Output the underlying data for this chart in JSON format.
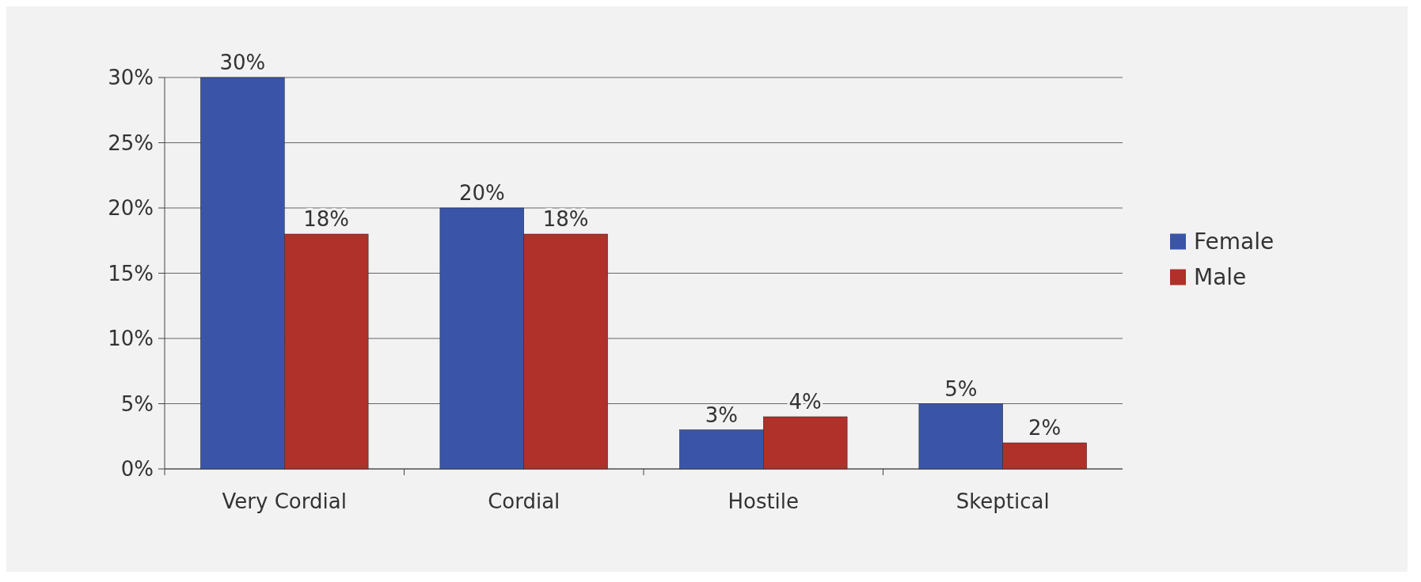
{
  "chart_data": {
    "type": "bar",
    "categories": [
      "Very Cordial",
      "Cordial",
      "Hostile",
      "Skeptical"
    ],
    "series": [
      {
        "name": "Female",
        "color": "#3a55a8",
        "values": [
          30,
          20,
          3,
          5
        ],
        "value_labels": [
          "30%",
          "20%",
          "3%",
          "5%"
        ]
      },
      {
        "name": "Male",
        "color": "#b0302a",
        "values": [
          18,
          18,
          4,
          2
        ],
        "value_labels": [
          "18%",
          "18%",
          "4%",
          "2%"
        ]
      }
    ],
    "ylim": [
      0,
      30
    ],
    "yticks": [
      {
        "value": 0,
        "label": "0%"
      },
      {
        "value": 5,
        "label": "5%"
      },
      {
        "value": 10,
        "label": "10%"
      },
      {
        "value": 15,
        "label": "15%"
      },
      {
        "value": 20,
        "label": "20%"
      },
      {
        "value": 25,
        "label": "25%"
      },
      {
        "value": 30,
        "label": "30%"
      }
    ],
    "grid": "y",
    "legend": "right"
  }
}
